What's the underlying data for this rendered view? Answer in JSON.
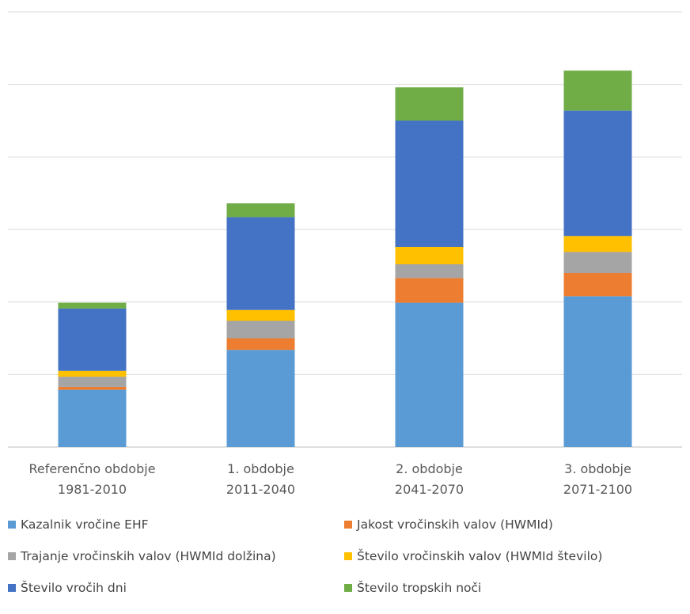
{
  "chart_data": {
    "type": "stacked-bar",
    "categories": [
      [
        "Referenčno obdobje",
        "1981-2010"
      ],
      [
        "1. obdobje",
        "2011-2040"
      ],
      [
        "2. obdobje",
        "2041-2070"
      ],
      [
        "3. obdobje",
        "2071-2100"
      ]
    ],
    "series": [
      {
        "name": "Kazalnik vročine EHF",
        "color": "#5B9BD5",
        "values": [
          0.79,
          1.34,
          1.99,
          2.08
        ]
      },
      {
        "name": "Jakost vročinskih valov (HWMId)",
        "color": "#ED7D31",
        "values": [
          0.04,
          0.16,
          0.34,
          0.32
        ]
      },
      {
        "name": "Trajanje vročinskih valov (HWMId dolžina)",
        "color": "#A5A5A5",
        "values": [
          0.14,
          0.24,
          0.19,
          0.29
        ]
      },
      {
        "name": "Število vročinskih valov (HWMId število)",
        "color": "#FFC000",
        "values": [
          0.08,
          0.15,
          0.24,
          0.22
        ]
      },
      {
        "name": "Število vročih dni",
        "color": "#4472C4",
        "values": [
          0.86,
          1.28,
          1.74,
          1.73
        ]
      },
      {
        "name": "Število tropskih noči",
        "color": "#70AD47",
        "values": [
          0.08,
          0.19,
          0.46,
          0.55
        ]
      }
    ],
    "ylim": [
      0,
      6
    ],
    "gridlines": [
      0,
      1,
      2,
      3,
      4,
      5,
      6
    ],
    "y_tick_labels_shown": false,
    "grid": true,
    "legend_position": "bottom"
  }
}
